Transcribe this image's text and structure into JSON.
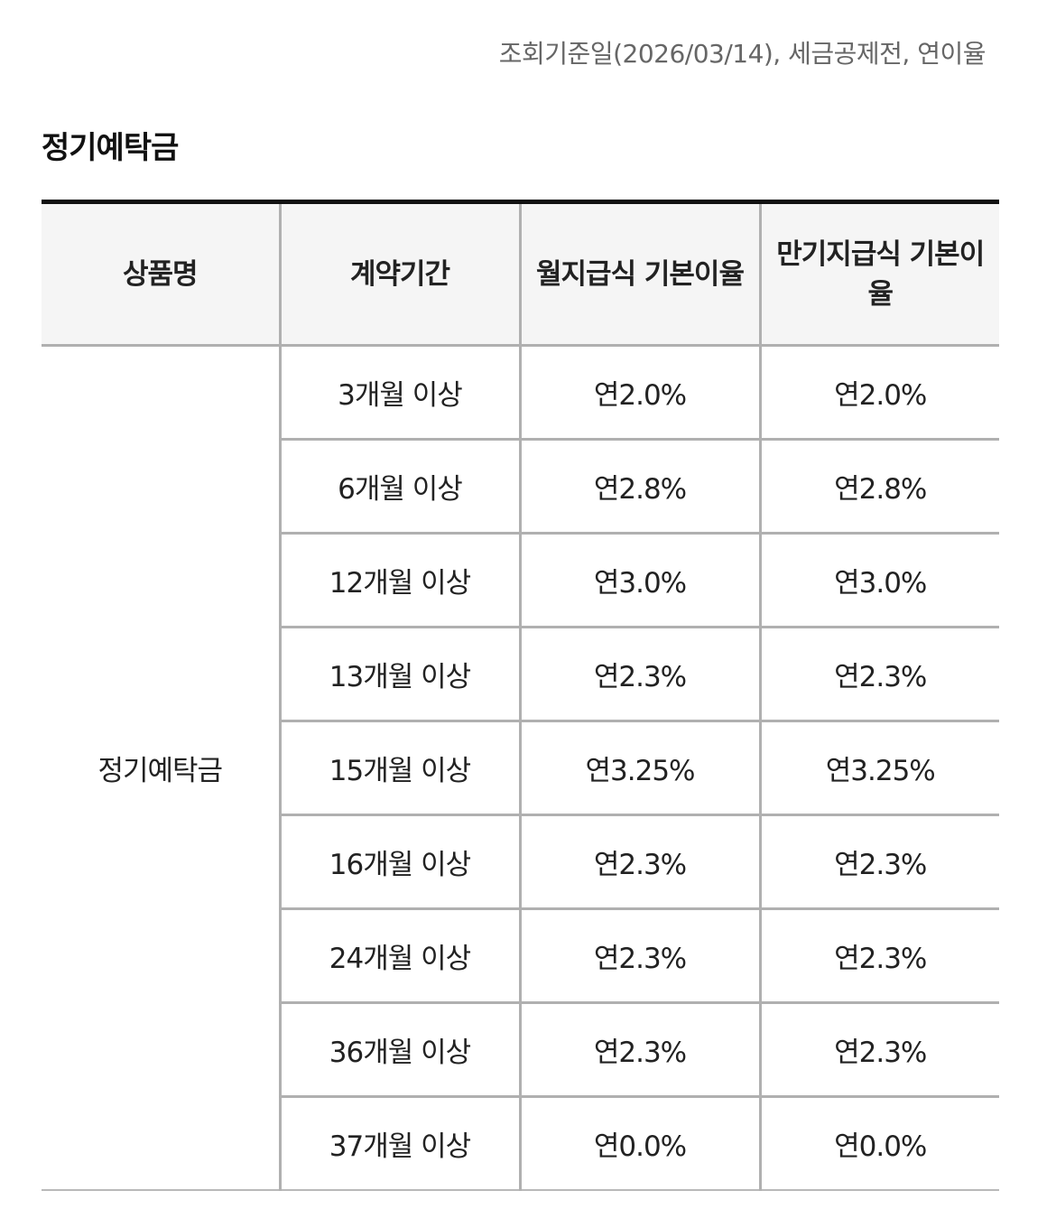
{
  "reference_note": "조회기준일(2026/03/14), 세금공제전, 연이율",
  "section_title": "정기예탁금",
  "table": {
    "headers": [
      "상품명",
      "계약기간",
      "월지급식 기본이율",
      "만기지급식 기본이율"
    ],
    "product_name": "정기예탁금",
    "rows": [
      {
        "period": "3개월 이상",
        "monthly_rate": "연2.0%",
        "maturity_rate": "연2.0%"
      },
      {
        "period": "6개월 이상",
        "monthly_rate": "연2.8%",
        "maturity_rate": "연2.8%"
      },
      {
        "period": "12개월 이상",
        "monthly_rate": "연3.0%",
        "maturity_rate": "연3.0%"
      },
      {
        "period": "13개월 이상",
        "monthly_rate": "연2.3%",
        "maturity_rate": "연2.3%"
      },
      {
        "period": "15개월 이상",
        "monthly_rate": "연3.25%",
        "maturity_rate": "연3.25%"
      },
      {
        "period": "16개월 이상",
        "monthly_rate": "연2.3%",
        "maturity_rate": "연2.3%"
      },
      {
        "period": "24개월 이상",
        "monthly_rate": "연2.3%",
        "maturity_rate": "연2.3%"
      },
      {
        "period": "36개월 이상",
        "monthly_rate": "연2.3%",
        "maturity_rate": "연2.3%"
      },
      {
        "period": "37개월 이상",
        "monthly_rate": "연0.0%",
        "maturity_rate": "연0.0%"
      }
    ]
  }
}
